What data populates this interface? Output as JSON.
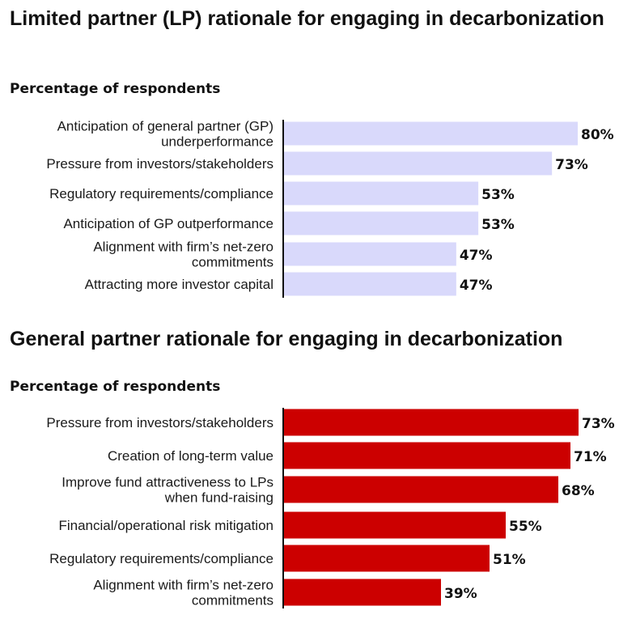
{
  "chart_data": [
    {
      "type": "bar",
      "orientation": "horizontal",
      "title": "Limited partner (LP) rationale for engaging in decarbonization",
      "subtitle": "Percentage of respondents",
      "categories": [
        [
          "Anticipation of general partner (GP)",
          "underperformance"
        ],
        [
          "Pressure from investors/stakeholders"
        ],
        [
          "Regulatory requirements/compliance"
        ],
        [
          "Anticipation of GP outperformance"
        ],
        [
          "Alignment with firm’s net-zero",
          "commitments"
        ],
        [
          "Attracting more investor capital"
        ]
      ],
      "values": [
        80,
        73,
        53,
        53,
        47,
        47
      ],
      "value_labels": [
        "80%",
        "73%",
        "53%",
        "53%",
        "47%",
        "47%"
      ],
      "bar_color": "#d9d9fb",
      "xlim": [
        0,
        100
      ],
      "grid": false
    },
    {
      "type": "bar",
      "orientation": "horizontal",
      "title": "General partner rationale for engaging in decarbonization",
      "subtitle": "Percentage of respondents",
      "categories": [
        [
          "Pressure from investors/stakeholders"
        ],
        [
          "Creation of long-term value"
        ],
        [
          "Improve fund attractiveness to LPs",
          "when fund-raising"
        ],
        [
          "Financial/operational risk mitigation"
        ],
        [
          "Regulatory requirements/compliance"
        ],
        [
          "Alignment with firm’s net-zero",
          "commitments"
        ]
      ],
      "values": [
        73,
        71,
        68,
        55,
        51,
        39
      ],
      "value_labels": [
        "73%",
        "71%",
        "68%",
        "55%",
        "51%",
        "39%"
      ],
      "bar_color": "#cc0000",
      "xlim": [
        0,
        100
      ],
      "grid": false
    }
  ]
}
